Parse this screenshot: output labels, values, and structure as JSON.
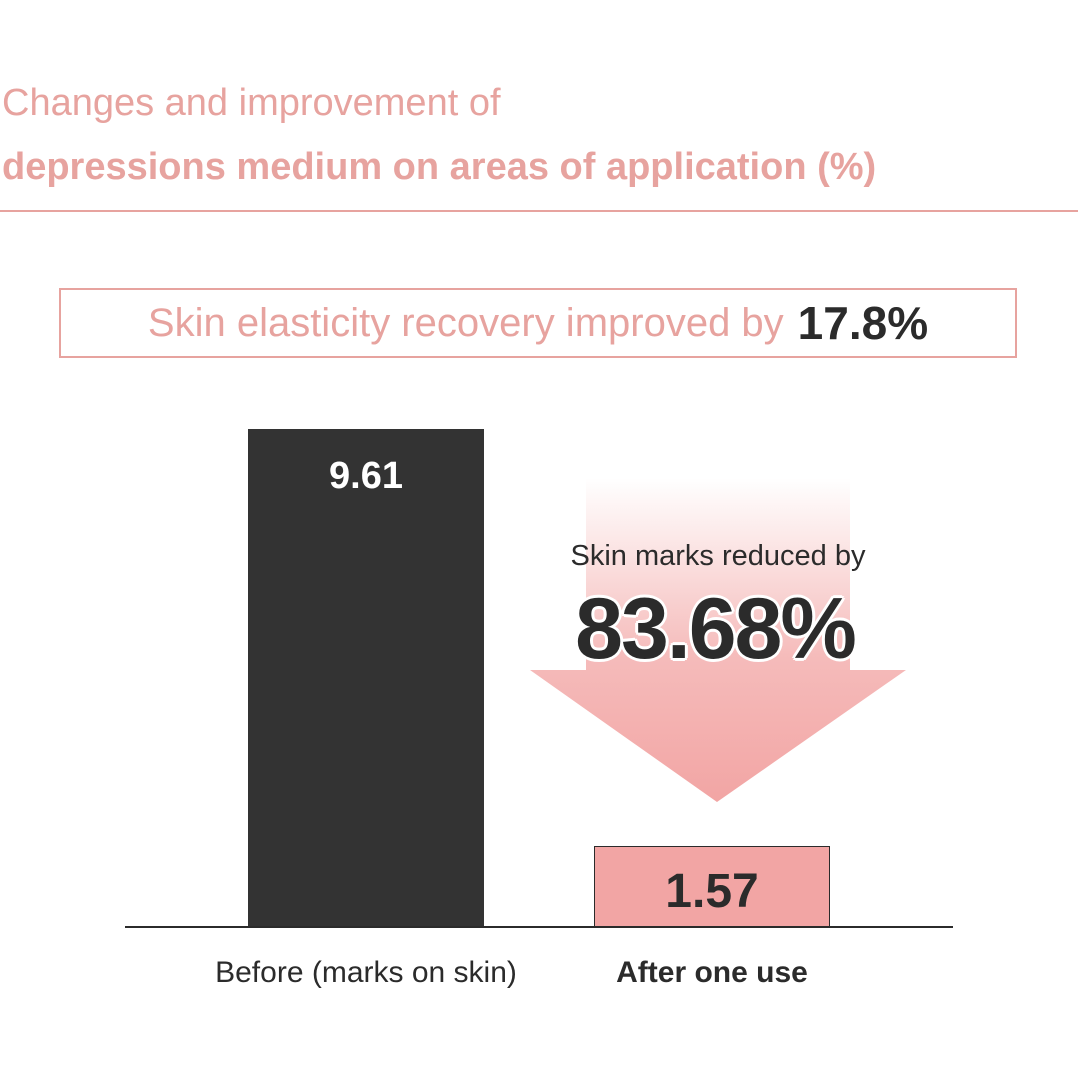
{
  "title": {
    "line1": "Changes and improvement of",
    "line2": "depressions medium on areas of application (%)"
  },
  "callout": {
    "text": "Skin elasticity recovery improved by",
    "value": "17.8%"
  },
  "reduction": {
    "label": "Skin marks reduced by",
    "value": "83.68%"
  },
  "colors": {
    "accent": "#e7a39f",
    "before_bar": "#333333",
    "after_bar": "#f2a5a4",
    "text_dark": "#2b2b2b"
  },
  "chart_data": {
    "type": "bar",
    "title": "Changes and improvement of depressions medium on areas of application (%)",
    "categories": [
      "Before (marks on skin)",
      "After one use"
    ],
    "values": [
      9.61,
      1.57
    ],
    "value_labels": [
      "9.61",
      "1.57"
    ],
    "xlabel": "",
    "ylabel": "",
    "ylim": [
      0,
      9.61
    ],
    "grid": false,
    "legend": "none"
  }
}
